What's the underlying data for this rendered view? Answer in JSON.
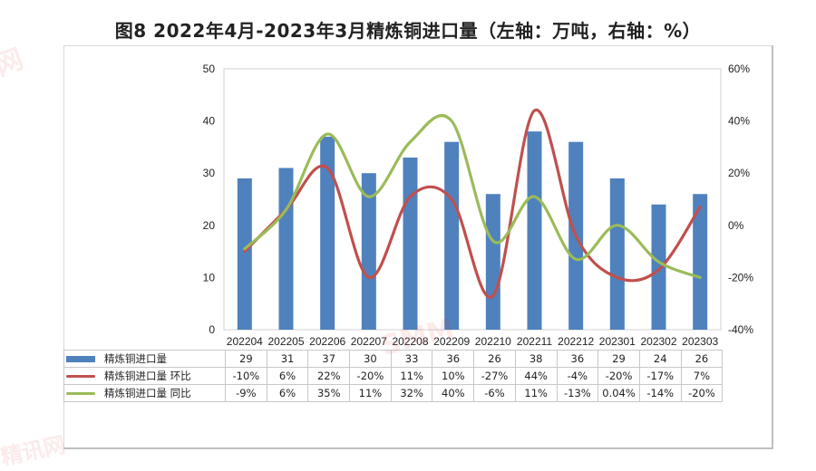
{
  "chart_data": {
    "type": "bar+line",
    "title": "图8  2022年4月-2023年3月精炼铜进口量（左轴：万吨，右轴：%）",
    "categories": [
      "202204",
      "202205",
      "202206",
      "202207",
      "202208",
      "202209",
      "202210",
      "202211",
      "202212",
      "202301",
      "202302",
      "202303"
    ],
    "ylim_left": [
      0,
      50
    ],
    "yticks_left": [
      "0",
      "10",
      "20",
      "30",
      "40",
      "50"
    ],
    "ylim_right": [
      -40,
      60
    ],
    "yticks_right": [
      "-40%",
      "-20%",
      "0%",
      "20%",
      "40%",
      "60%"
    ],
    "series": [
      {
        "name": "精炼铜进口量",
        "type": "bar",
        "axis": "left",
        "color": "#4f81bd",
        "values": [
          29,
          31,
          37,
          30,
          33,
          36,
          26,
          38,
          36,
          29,
          24,
          26
        ],
        "labels": [
          "29",
          "31",
          "37",
          "30",
          "33",
          "36",
          "26",
          "38",
          "36",
          "29",
          "24",
          "26"
        ]
      },
      {
        "name": "精炼铜进口量 环比",
        "type": "line",
        "axis": "right",
        "color": "#c0504d",
        "values": [
          -10,
          6,
          22,
          -20,
          11,
          10,
          -27,
          44,
          -4,
          -20,
          -17,
          7
        ],
        "labels": [
          "-10%",
          "6%",
          "22%",
          "-20%",
          "11%",
          "10%",
          "-27%",
          "44%",
          "-4%",
          "-20%",
          "-17%",
          "7%"
        ]
      },
      {
        "name": "精炼铜进口量 同比",
        "type": "line",
        "axis": "right",
        "color": "#9bbb59",
        "values": [
          -9,
          6,
          35,
          11,
          32,
          40,
          -6,
          11,
          -13,
          0.04,
          -14,
          -20
        ],
        "labels": [
          "-9%",
          "6%",
          "35%",
          "11%",
          "32%",
          "40%",
          "-6%",
          "11%",
          "-13%",
          "0.04%",
          "-14%",
          "-20%"
        ]
      }
    ]
  },
  "watermarks": [
    "网",
    "SMM",
    "精讯网"
  ]
}
